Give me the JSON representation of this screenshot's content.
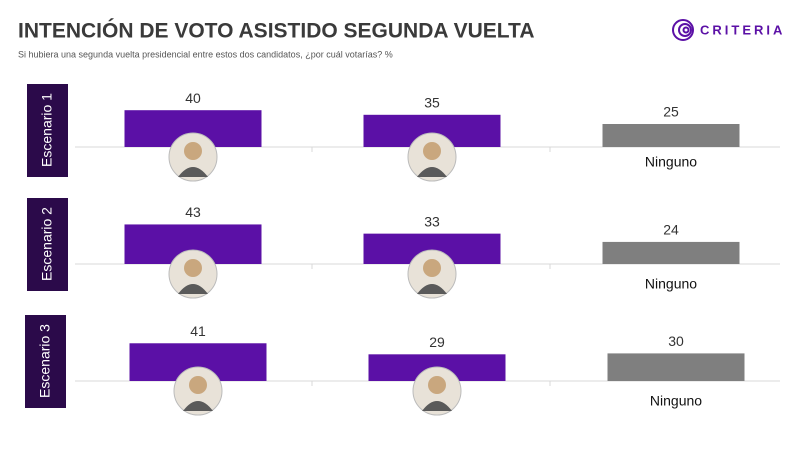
{
  "header": {
    "title": "INTENCIÓN DE VOTO ASISTIDO SEGUNDA VUELTA",
    "subtitle": "Si hubiera una segunda vuelta presidencial entre estos dos candidatos, ¿por cuál votarías? %",
    "logo": "CRITERIA"
  },
  "chart_data": [
    {
      "type": "bar",
      "title": "Escenario 1",
      "categories": [
        null,
        null,
        "Ninguno"
      ],
      "values": [
        40,
        35,
        25
      ],
      "colors": [
        "#5b10a6",
        "#5b10a6",
        "#7f7f7f"
      ],
      "ylim": [
        0,
        100
      ]
    },
    {
      "type": "bar",
      "title": "Escenario 2",
      "categories": [
        null,
        null,
        "Ninguno"
      ],
      "values": [
        43,
        33,
        24
      ],
      "colors": [
        "#5b10a6",
        "#5b10a6",
        "#7f7f7f"
      ],
      "ylim": [
        0,
        100
      ]
    },
    {
      "type": "bar",
      "title": "Escenario 3",
      "categories": [
        null,
        null,
        "Ninguno"
      ],
      "values": [
        41,
        29,
        30
      ],
      "colors": [
        "#5b10a6",
        "#5b10a6",
        "#7f7f7f"
      ],
      "ylim": [
        0,
        100
      ]
    }
  ]
}
